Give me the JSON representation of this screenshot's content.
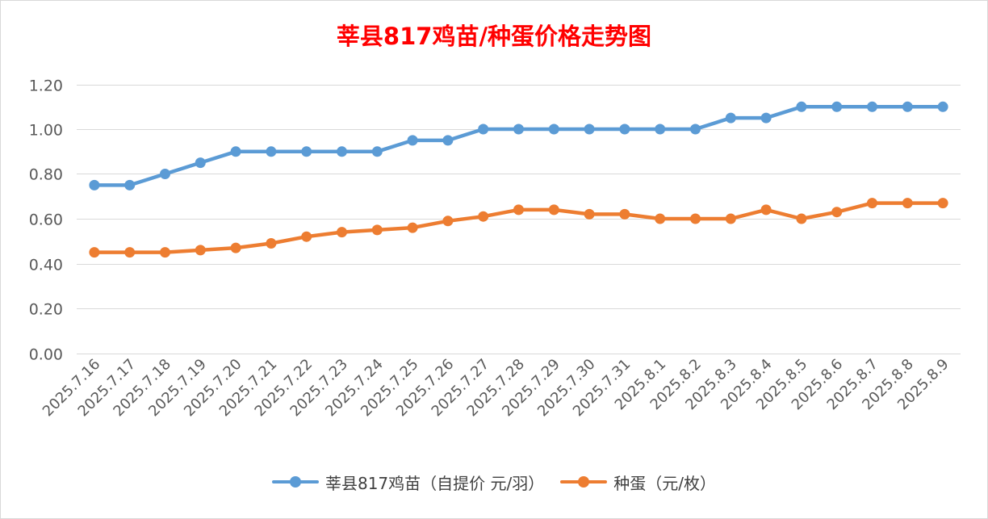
{
  "chart_data": {
    "type": "line",
    "title": "莘县817鸡苗/种蛋价格走势图",
    "categories": [
      "2025.7.16",
      "2025.7.17",
      "2025.7.18",
      "2025.7.19",
      "2025.7.20",
      "2025.7.21",
      "2025.7.22",
      "2025.7.23",
      "2025.7.24",
      "2025.7.25",
      "2025.7.26",
      "2025.7.27",
      "2025.7.28",
      "2025.7.29",
      "2025.7.30",
      "2025.7.31",
      "2025.8.1",
      "2025.8.2",
      "2025.8.3",
      "2025.8.4",
      "2025.8.5",
      "2025.8.6",
      "2025.8.7",
      "2025.8.8",
      "2025.8.9"
    ],
    "series": [
      {
        "name": "莘县817鸡苗（自提价 元/羽）",
        "color": "#5b9bd5",
        "values": [
          0.75,
          0.75,
          0.8,
          0.85,
          0.9,
          0.9,
          0.9,
          0.9,
          0.9,
          0.95,
          0.95,
          1.0,
          1.0,
          1.0,
          1.0,
          1.0,
          1.0,
          1.0,
          1.05,
          1.05,
          1.1,
          1.1,
          1.1,
          1.1,
          1.1
        ]
      },
      {
        "name": "种蛋（元/枚）",
        "color": "#ed7d31",
        "values": [
          0.45,
          0.45,
          0.45,
          0.46,
          0.47,
          0.49,
          0.52,
          0.54,
          0.55,
          0.56,
          0.59,
          0.61,
          0.64,
          0.64,
          0.62,
          0.62,
          0.6,
          0.6,
          0.6,
          0.64,
          0.6,
          0.63,
          0.67,
          0.67,
          0.67
        ]
      }
    ],
    "ylim": [
      0,
      1.2
    ],
    "yticks": [
      "0.00",
      "0.20",
      "0.40",
      "0.60",
      "0.80",
      "1.00",
      "1.20"
    ],
    "xlabel": "",
    "ylabel": "",
    "grid": true,
    "legend": "bottom"
  }
}
